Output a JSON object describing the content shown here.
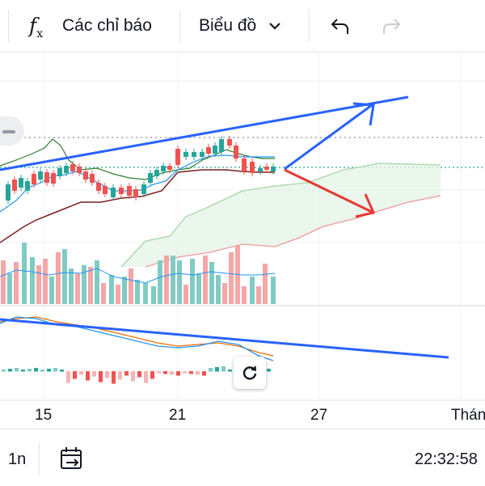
{
  "toolbar": {
    "indicators_label": "Các chỉ báo",
    "chart_type_label": "Biểu đồ",
    "icons": [
      "fx-icon",
      "chevron-down-icon",
      "undo-icon",
      "redo-icon"
    ]
  },
  "chart_data": {
    "type": "candlestick",
    "x_tick_labels": [
      "15",
      "21",
      "27",
      "Thán"
    ],
    "panes": [
      "price-with-ichimoku-cloud",
      "volume",
      "macd"
    ],
    "annotations": [
      "blue-trendline-upper",
      "blue-arrow-up",
      "red-arrow-down",
      "blue-trendline-macd"
    ],
    "colors": {
      "up": "#26a69a",
      "down": "#ef5350",
      "trendline": "#2962ff",
      "arrow_red": "#e53935"
    },
    "grid": true
  },
  "bottom": {
    "interval": "1n",
    "time": "22:32:58"
  }
}
